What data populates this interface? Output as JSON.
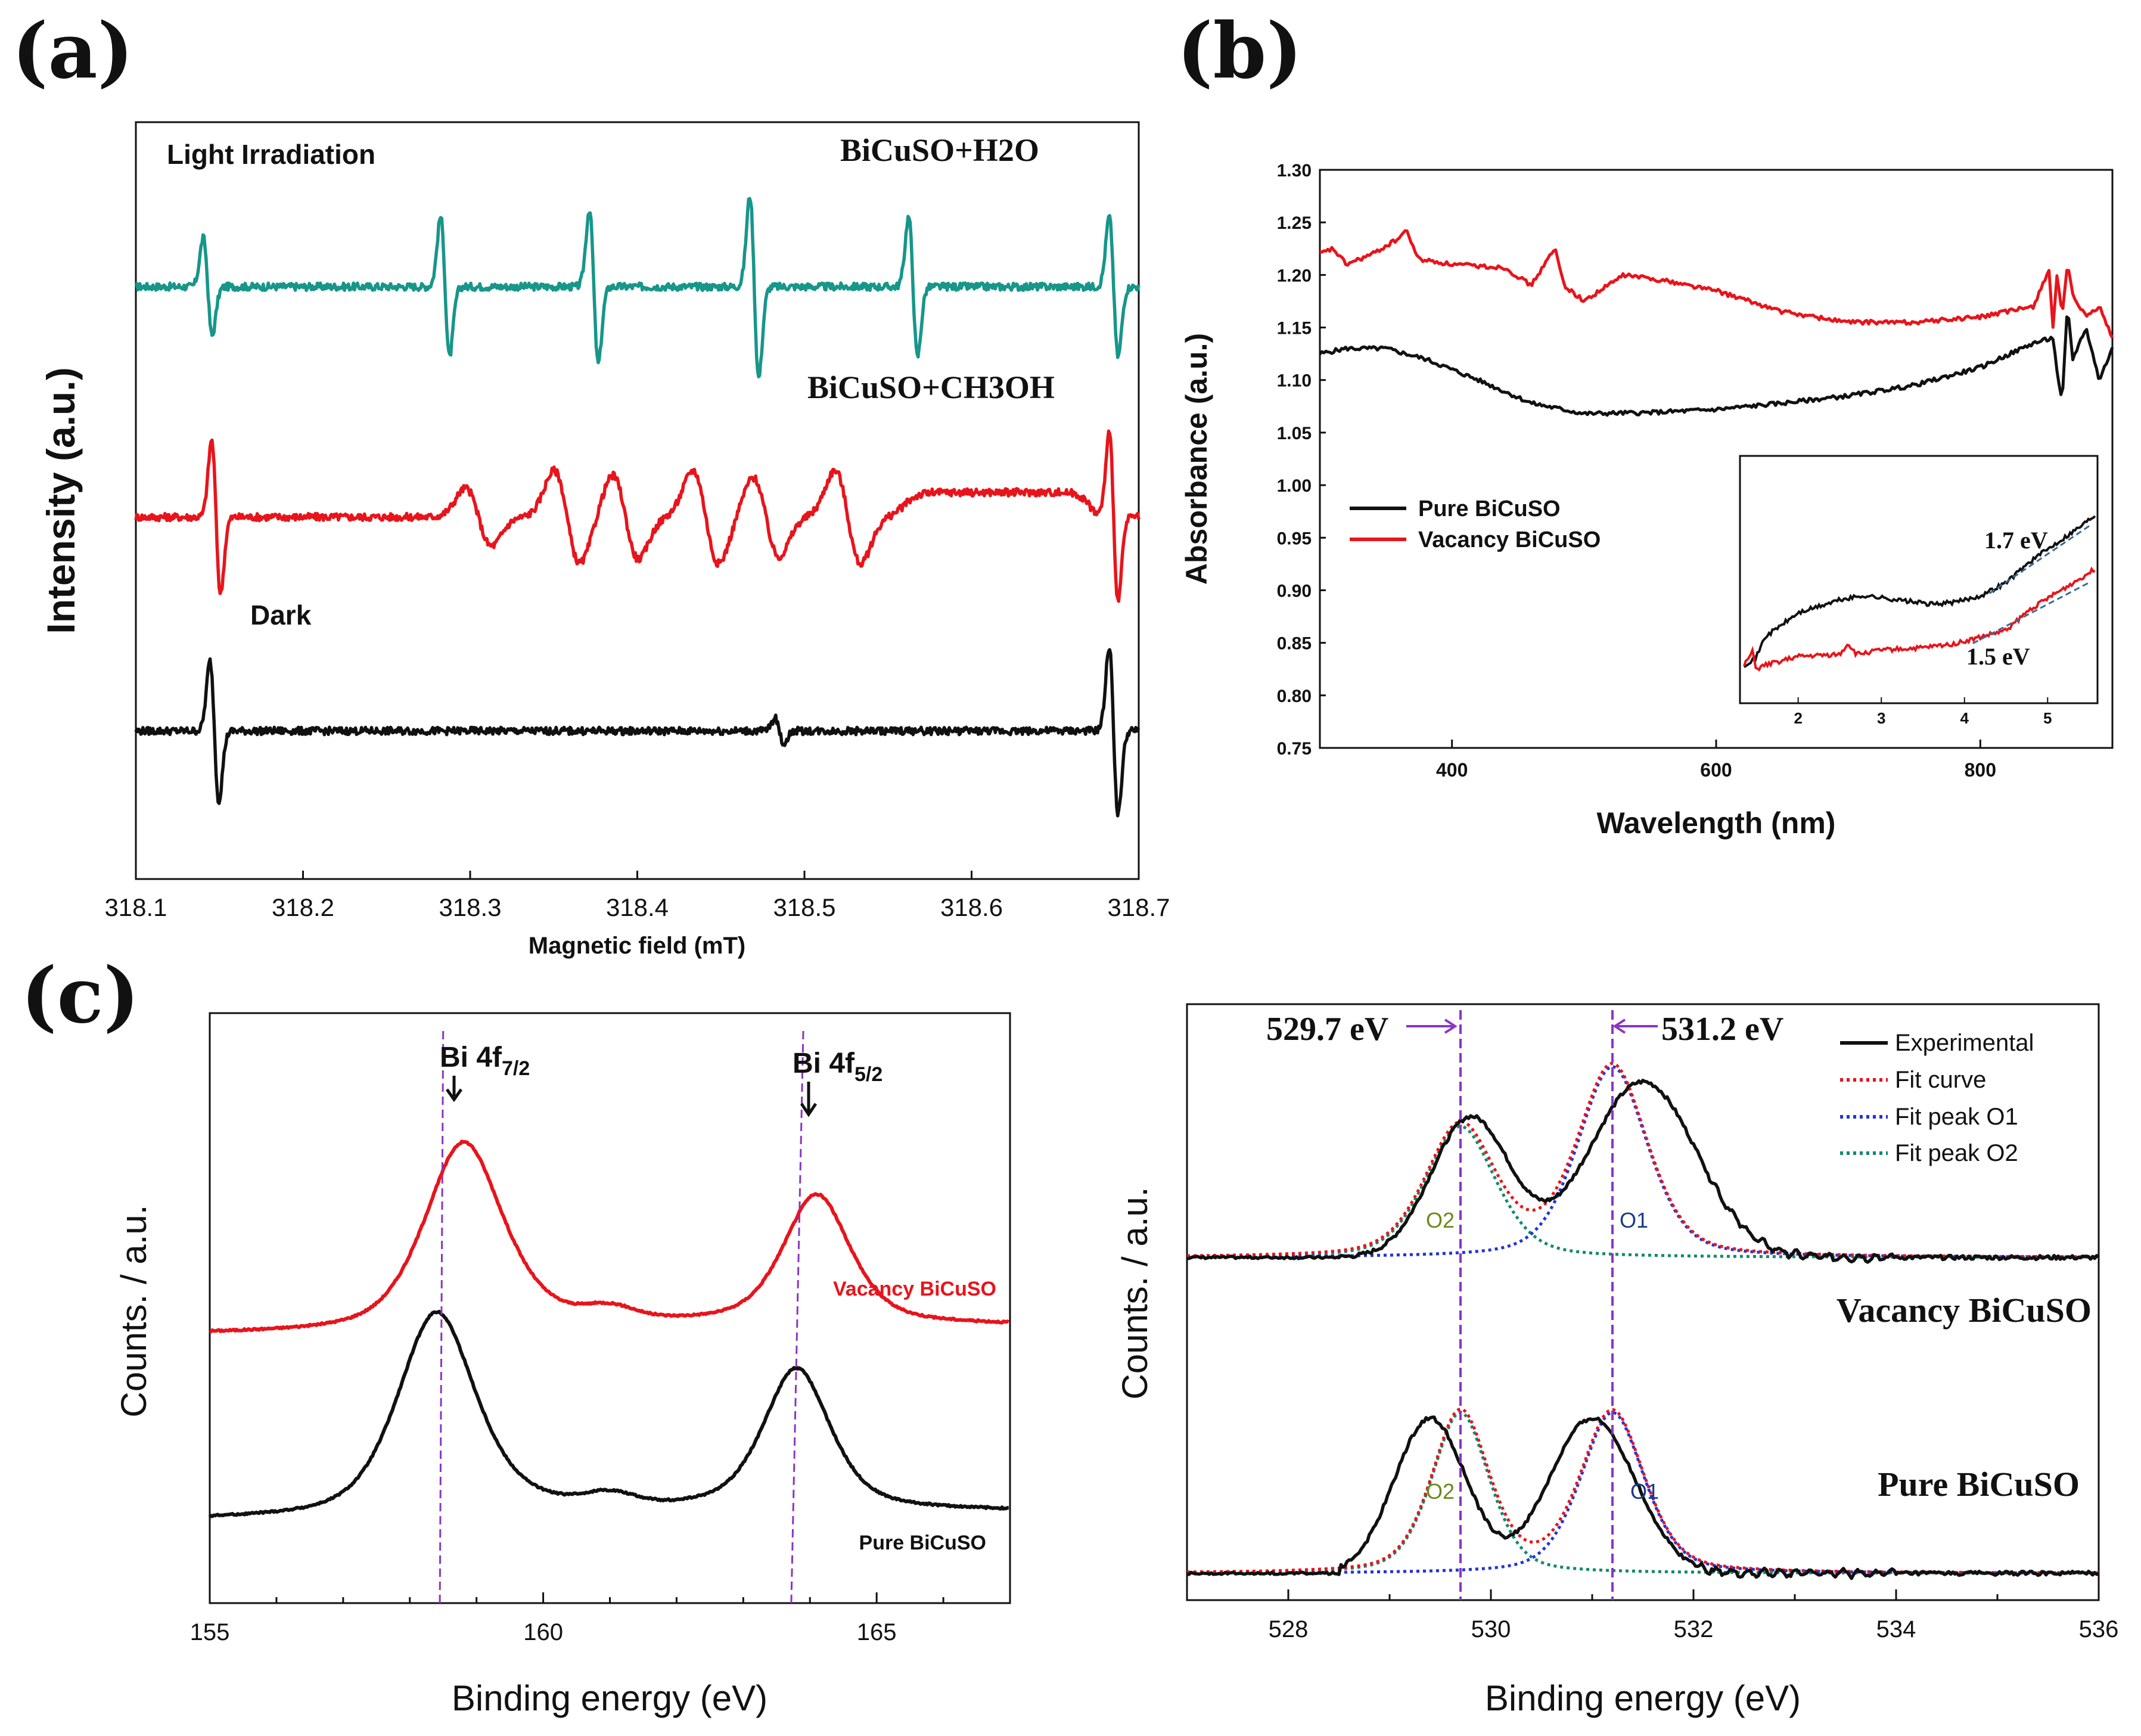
{
  "panel_labels": [
    "(a)",
    "(b)",
    "(c)"
  ],
  "colors": {
    "black": "#111111",
    "red": "#e8141b",
    "teal": "#17968a",
    "blue": "#2233dd",
    "green": "#138a6a",
    "purple": "#8a35c4",
    "o2_label": "#6a8a1a",
    "o1_label": "#1a3a8a",
    "inset_dash": "#3a6a9a"
  },
  "chart_data": [
    {
      "id": "a",
      "type": "line",
      "title": "",
      "xlabel": "Magnetic field (mT)",
      "ylabel": "Intensity (a.u.)",
      "xlim": [
        318.1,
        318.7
      ],
      "ylim": [
        -0.2,
        9.0
      ],
      "xticks": [
        "318.1",
        "318.2",
        "318.3",
        "318.4",
        "318.5",
        "318.6",
        "318.7"
      ],
      "annotations": {
        "light": "Light Irradiation",
        "dark": "Dark",
        "h2o": "BiCuSO+H2O",
        "ch3oh": "BiCuSO+CH3OH"
      },
      "series": [
        {
          "name": "BiCuSO+H2O",
          "color": "#17968a",
          "offset": 7.0,
          "amp": 1.2,
          "lines": [
            [
              318.143,
              0.7
            ],
            [
              318.285,
              1.0
            ],
            [
              318.374,
              1.1
            ],
            [
              318.47,
              1.3
            ],
            [
              318.565,
              1.0
            ],
            [
              318.685,
              1.0
            ]
          ],
          "broad": [],
          "plateau": []
        },
        {
          "name": "BiCuSO+CH3OH",
          "color": "#e8141b",
          "offset": 4.2,
          "amp": 1.2,
          "lines": [
            [
              318.148,
              1.1
            ],
            [
              318.685,
              1.2
            ]
          ],
          "broad": [
            [
              318.305,
              0.62
            ],
            [
              318.358,
              1.0
            ],
            [
              318.393,
              0.9
            ],
            [
              318.441,
              1.0
            ],
            [
              318.477,
              0.85
            ],
            [
              318.526,
              1.0
            ]
          ],
          "plateau": [
            [
              318.56,
              318.67,
              0.3
            ]
          ]
        },
        {
          "name": "Dark",
          "color": "#111111",
          "offset": 1.6,
          "amp": 1.2,
          "lines": [
            [
              318.147,
              1.0
            ],
            [
              318.485,
              0.18
            ],
            [
              318.685,
              1.2
            ]
          ],
          "broad": [],
          "plateau": []
        }
      ]
    },
    {
      "id": "b",
      "type": "line",
      "xlabel": "Wavelength (nm)",
      "ylabel": "Absorbance (a.u.)",
      "xlim": [
        300,
        900
      ],
      "ylim": [
        0.75,
        1.3
      ],
      "xticks": [
        "400",
        "600",
        "800"
      ],
      "yticks": [
        "0.75",
        "0.80",
        "0.85",
        "0.90",
        "0.95",
        "1.00",
        "1.05",
        "1.10",
        "1.15",
        "1.20",
        "1.25",
        "1.30"
      ],
      "legend": [
        "Pure BiCuSO",
        "Vacancy BiCuSO"
      ],
      "series": [
        {
          "name": "Pure BiCuSO",
          "color": "#111111",
          "x": [
            300,
            320,
            350,
            380,
            420,
            460,
            500,
            550,
            600,
            650,
            700,
            750,
            800,
            840,
            855,
            860,
            862,
            866,
            870,
            880,
            890,
            900
          ],
          "y": [
            1.125,
            1.13,
            1.13,
            1.12,
            1.1,
            1.078,
            1.068,
            1.069,
            1.072,
            1.078,
            1.085,
            1.095,
            1.112,
            1.135,
            1.14,
            1.09,
            1.08,
            1.17,
            1.12,
            1.15,
            1.1,
            1.13
          ]
        },
        {
          "name": "Vacancy BiCuSO",
          "color": "#e8141b",
          "x": [
            300,
            310,
            320,
            340,
            360,
            365,
            375,
            400,
            440,
            460,
            470,
            478,
            485,
            500,
            530,
            560,
            600,
            650,
            700,
            750,
            800,
            840,
            852,
            855,
            858,
            862,
            866,
            870,
            880,
            890,
            900
          ],
          "y": [
            1.22,
            1.225,
            1.21,
            1.22,
            1.235,
            1.243,
            1.215,
            1.21,
            1.207,
            1.19,
            1.21,
            1.225,
            1.19,
            1.175,
            1.2,
            1.195,
            1.185,
            1.165,
            1.155,
            1.155,
            1.16,
            1.17,
            1.205,
            1.15,
            1.2,
            1.16,
            1.21,
            1.18,
            1.16,
            1.17,
            1.14
          ]
        }
      ],
      "inset": {
        "xticks": [
          "2",
          "3",
          "4",
          "5"
        ],
        "xlim": [
          1.3,
          5.6
        ],
        "ylim": [
          0,
          1
        ],
        "labels": [
          "1.7 eV",
          "1.5 eV"
        ],
        "series": [
          {
            "name": "Pure BiCuSO",
            "color": "#111111",
            "x": [
              1.35,
              1.5,
              1.6,
              2.0,
              2.5,
              2.8,
              3.2,
              3.6,
              3.9,
              4.2,
              4.5,
              4.8,
              5.1,
              5.4,
              5.6
            ],
            "y": [
              0.12,
              0.16,
              0.25,
              0.36,
              0.42,
              0.44,
              0.42,
              0.4,
              0.41,
              0.44,
              0.5,
              0.6,
              0.68,
              0.76,
              0.82
            ]
          },
          {
            "name": "Vacancy BiCuSO",
            "color": "#e8141b",
            "x": [
              1.35,
              1.45,
              1.5,
              1.6,
              2.0,
              2.5,
              2.6,
              2.7,
              3.0,
              3.5,
              3.9,
              4.2,
              4.5,
              4.8,
              5.1,
              5.4,
              5.6
            ],
            "y": [
              0.12,
              0.18,
              0.1,
              0.12,
              0.16,
              0.17,
              0.22,
              0.17,
              0.19,
              0.2,
              0.22,
              0.25,
              0.28,
              0.38,
              0.45,
              0.52,
              0.57
            ]
          }
        ]
      }
    },
    {
      "id": "c-left",
      "type": "line",
      "xlabel": "Binding energy (eV)",
      "ylabel": "Counts. / a.u.",
      "xlim": [
        155,
        167
      ],
      "ylim": [
        0,
        10
      ],
      "xticks": [
        "155",
        "160",
        "165"
      ],
      "peak_labels": {
        "bi7": "Bi 4f",
        "bi7_sub": "7/2",
        "bi5": "Bi 4f",
        "bi5_sub": "5/2"
      },
      "series": [
        {
          "name": "Vacancy BiCuSO",
          "color": "#e8141b",
          "base": 4.55,
          "peaks": [
            [
              158.8,
              3.2,
              0.7
            ],
            [
              164.1,
              2.2,
              0.6
            ]
          ]
        },
        {
          "name": "Pure BiCuSO",
          "color": "#111111",
          "base": 1.4,
          "peaks": [
            [
              158.4,
              3.5,
              0.7
            ],
            [
              163.8,
              2.4,
              0.6
            ]
          ]
        }
      ],
      "vlines": [
        [
          158.5,
          158.45
        ],
        [
          163.9,
          163.72
        ]
      ]
    },
    {
      "id": "c-right",
      "type": "line",
      "xlabel": "Binding energy (eV)",
      "ylabel": "Counts. / a.u.",
      "xlim": [
        527,
        536
      ],
      "ylim": [
        0,
        10
      ],
      "xticks": [
        "528",
        "530",
        "532",
        "534",
        "536"
      ],
      "vlines": [
        529.7,
        531.2
      ],
      "vline_labels": [
        "529.7 eV",
        "531.2 eV"
      ],
      "sample_labels": [
        "Vacancy BiCuSO",
        "Pure BiCuSO"
      ],
      "peak_labels": [
        "O2",
        "O1"
      ],
      "legend": [
        "Experimental",
        "Fit curve",
        "Fit peak O1",
        "Fit peak O2"
      ],
      "groups": [
        {
          "name": "Vacancy BiCuSO",
          "base": 5.75,
          "experimental": [
            [
              529.8,
              2.35,
              0.55
            ],
            [
              531.5,
              2.95,
              0.75
            ]
          ],
          "o2": [
            529.7,
            2.2,
            0.55
          ],
          "o1": [
            531.2,
            3.2,
            0.55
          ]
        },
        {
          "name": "Pure BiCuSO",
          "base": 0.45,
          "experimental": [
            [
              529.4,
              2.6,
              0.5
            ],
            [
              531.0,
              2.6,
              0.6
            ]
          ],
          "o2": [
            529.7,
            2.7,
            0.45
          ],
          "o1": [
            531.2,
            2.7,
            0.5
          ]
        }
      ]
    }
  ]
}
